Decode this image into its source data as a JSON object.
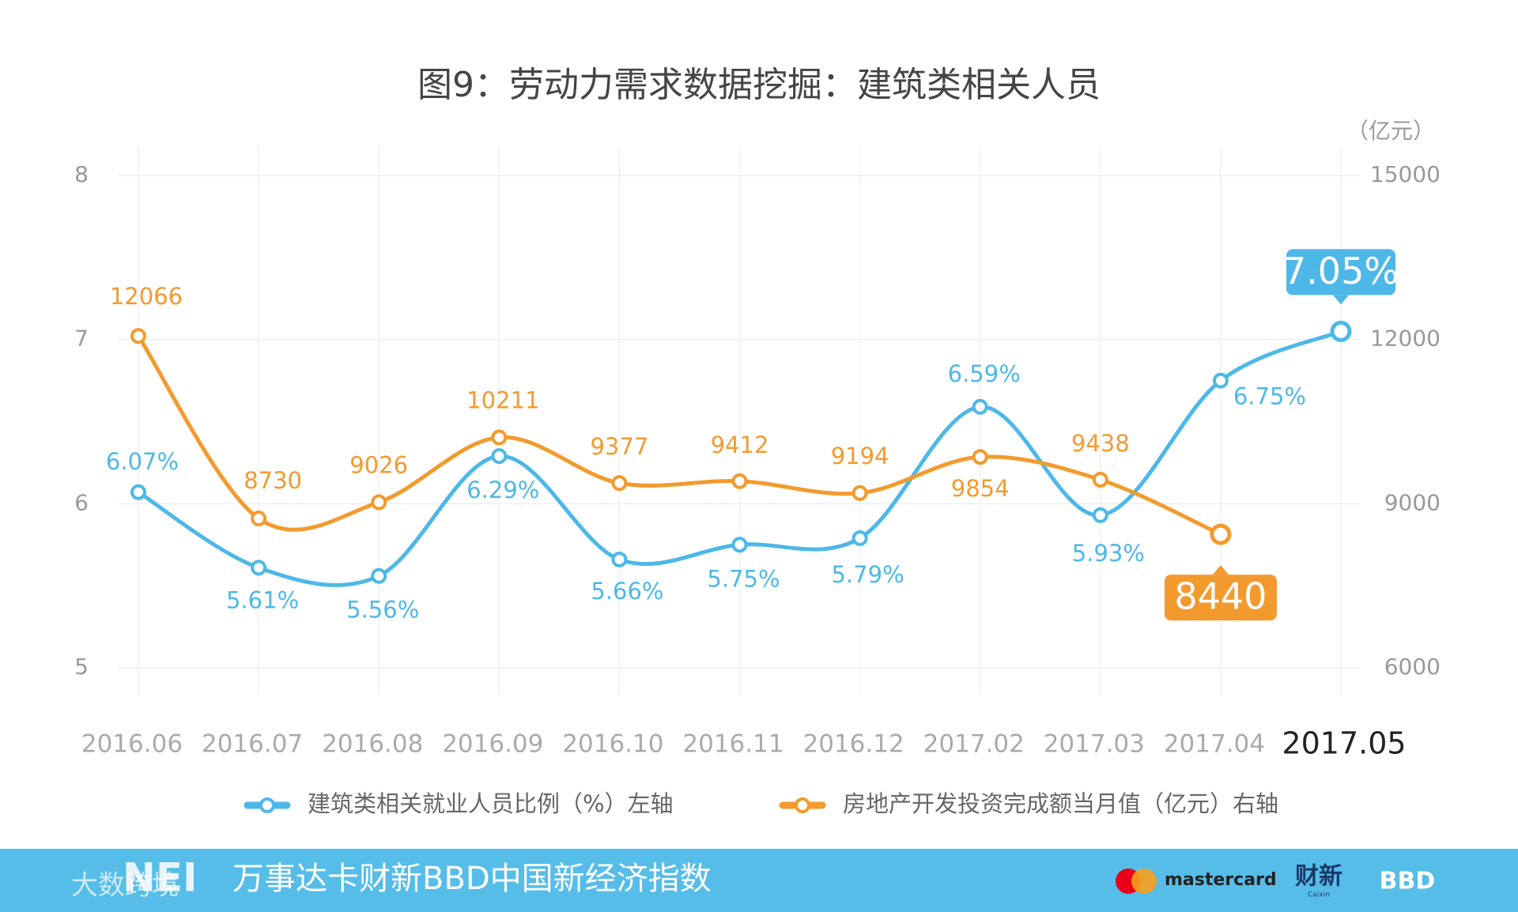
{
  "chart_data": {
    "type": "line",
    "title": "图9：劳动力需求数据挖掘：建筑类相关人员",
    "y2_label": "（亿元）",
    "categories": [
      "2016.06",
      "2016.07",
      "2016.08",
      "2016.09",
      "2016.10",
      "2016.11",
      "2016.12",
      "2017.02",
      "2017.03",
      "2017.04",
      "2017.05"
    ],
    "series": [
      {
        "name": "建筑类相关就业人员比例（%）左轴",
        "color": "#4db8e8",
        "values": [
          6.07,
          5.61,
          5.56,
          6.29,
          5.66,
          5.75,
          5.79,
          6.59,
          5.93,
          6.75,
          7.05
        ],
        "value_labels": [
          "6.07%",
          "5.61%",
          "5.56%",
          "6.29%",
          "5.66%",
          "5.75%",
          "5.79%",
          "6.59%",
          "5.93%",
          "6.75%",
          "7.05%"
        ]
      },
      {
        "name": "房地产开发投资完成额当月值（亿元）右轴",
        "color": "#f39a2e",
        "axis": "y2",
        "values": [
          12066,
          8730,
          9026,
          10211,
          9377,
          9412,
          9194,
          9854,
          9438,
          8440,
          null
        ]
      }
    ],
    "ylim": [
      5,
      8
    ],
    "yticks": [
      5,
      6,
      7,
      8
    ],
    "y2lim": [
      6000,
      15000
    ],
    "y2ticks": [
      6000,
      9000,
      12000,
      15000
    ],
    "grid": true,
    "legend": "bottom"
  },
  "footer": {
    "logo": "NEI",
    "text": "万事达卡财新BBD中国新经济指数",
    "brands": [
      "mastercard",
      "财新",
      "Caixin",
      "BBD"
    ],
    "watermark": "大数跨境"
  }
}
